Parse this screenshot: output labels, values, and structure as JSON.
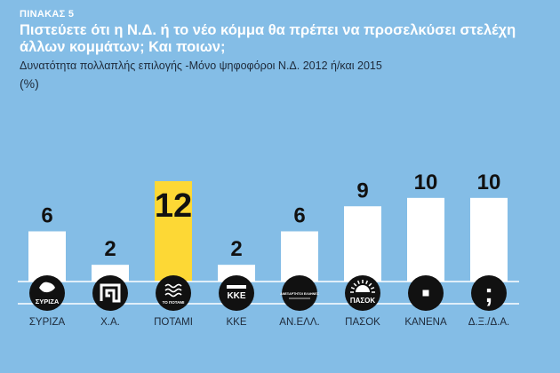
{
  "header": {
    "kicker": "ΠΙΝΑΚΑΣ 5",
    "title_line1": "Πιστεύετε ότι η Ν.Δ. ή το νέο κόμμα θα πρέπει να προσελκύσει στελέχη",
    "title_line2": "άλλων κομμάτων; Και ποιων;",
    "subtitle": "Δυνατότητα πολλαπλής επιλογής -Μόνο ψηφοφόροι Ν.Δ. 2012 ή/και 2015",
    "unit": "(%)"
  },
  "chart_data": {
    "type": "bar",
    "categories": [
      "ΣΥΡΙΖΑ",
      "Χ.Α.",
      "ΠΟΤΑΜΙ",
      "ΚΚΕ",
      "ΑΝ.ΕΛΛ.",
      "ΠΑΣΟΚ",
      "ΚΑΝΕΝΑ",
      "Δ.Ξ./Δ.Α."
    ],
    "values": [
      6,
      2,
      12,
      2,
      6,
      9,
      10,
      10
    ],
    "highlight_index": 2,
    "ylim": [
      0,
      12
    ],
    "bar_color": "#ffffff",
    "highlight_color": "#fdd835",
    "logos": [
      {
        "icon": "syriza-logo-icon",
        "text": "ΣΥΡΙΖΑ"
      },
      {
        "icon": "meander-icon",
        "text": ""
      },
      {
        "icon": "potami-logo-icon",
        "text": "ΤΟ ΠΟΤΑΜΙ"
      },
      {
        "icon": "kke-logo-icon",
        "text": "ΚΚΕ"
      },
      {
        "icon": "anel-logo-icon",
        "text": "ΑΝΕΞΑΡΤΗΤΟΙ ΕΛΛΗΝΕΣ"
      },
      {
        "icon": "pasok-sun-icon",
        "text": "ΠΑΣΟΚ"
      },
      {
        "icon": "square-icon",
        "text": ""
      },
      {
        "icon": "semicolon-icon",
        "text": ";"
      }
    ]
  }
}
